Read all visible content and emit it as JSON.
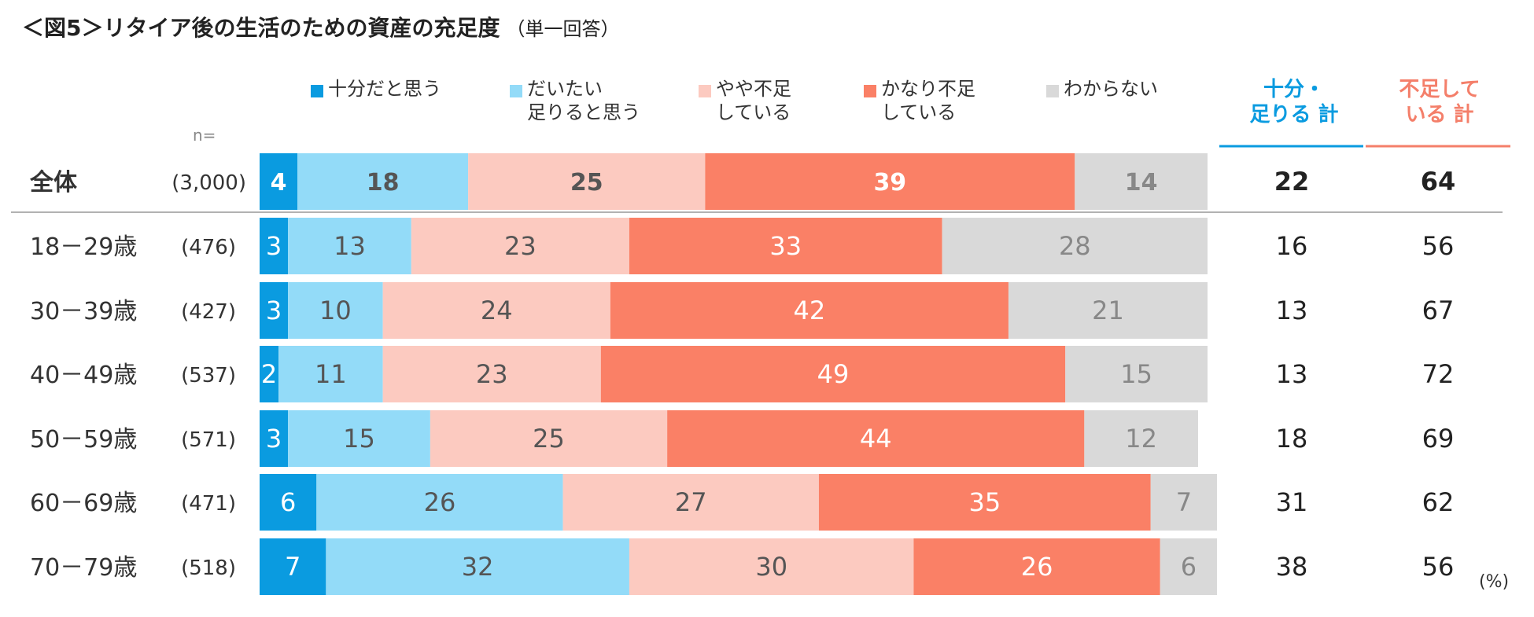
{
  "title": "＜図5＞リタイア後の生活のための資産の充足度",
  "subtitle": "（単一回答）",
  "n_label": "n=",
  "unit": "(%)",
  "colors": {
    "enough": "#0A9BE0",
    "somewhat_enough": "#93DBF8",
    "somewhat_insufficient": "#FCCAC0",
    "very_insufficient": "#FA8066",
    "unknown": "#D9D9D9",
    "sum_enough": "#0A9BE0",
    "sum_insufficient": "#F47F6A"
  },
  "legend": [
    {
      "label": "十分だと思う",
      "color": "#0A9BE0"
    },
    {
      "label": "だいたい\n足りると思う",
      "color": "#93DBF8"
    },
    {
      "label": "やや不足\nしている",
      "color": "#FCCAC0"
    },
    {
      "label": "かなり不足\nしている",
      "color": "#FA8066"
    },
    {
      "label": "わからない",
      "color": "#D9D9D9"
    }
  ],
  "summary_headers": {
    "enough": "十分・\n足りる 計",
    "insufficient": "不足して\nいる 計"
  },
  "chart_data": {
    "type": "bar",
    "orientation": "horizontal",
    "stacked": true,
    "title": "＜図5＞リタイア後の生活のための資産の充足度",
    "categories": [
      "全体",
      "18－29歳",
      "30－39歳",
      "40－49歳",
      "50－59歳",
      "60－69歳",
      "70－79歳"
    ],
    "n": [
      "(3,000)",
      "(476)",
      "(427)",
      "(537)",
      "(571)",
      "(471)",
      "(518)"
    ],
    "series": [
      {
        "name": "十分だと思う",
        "values": [
          4,
          3,
          3,
          2,
          3,
          6,
          7
        ]
      },
      {
        "name": "だいたい足りると思う",
        "values": [
          18,
          13,
          10,
          11,
          15,
          26,
          32
        ]
      },
      {
        "name": "やや不足している",
        "values": [
          25,
          23,
          24,
          23,
          25,
          27,
          30
        ]
      },
      {
        "name": "かなり不足している",
        "values": [
          39,
          33,
          42,
          49,
          44,
          35,
          26
        ]
      },
      {
        "name": "わからない",
        "values": [
          14,
          28,
          21,
          15,
          12,
          7,
          6
        ]
      }
    ],
    "totals": {
      "十分・足りる 計": [
        22,
        16,
        13,
        13,
        18,
        31,
        38
      ],
      "不足している 計": [
        64,
        56,
        67,
        72,
        69,
        62,
        56
      ]
    },
    "xlim": [
      0,
      100
    ],
    "unit": "%"
  }
}
